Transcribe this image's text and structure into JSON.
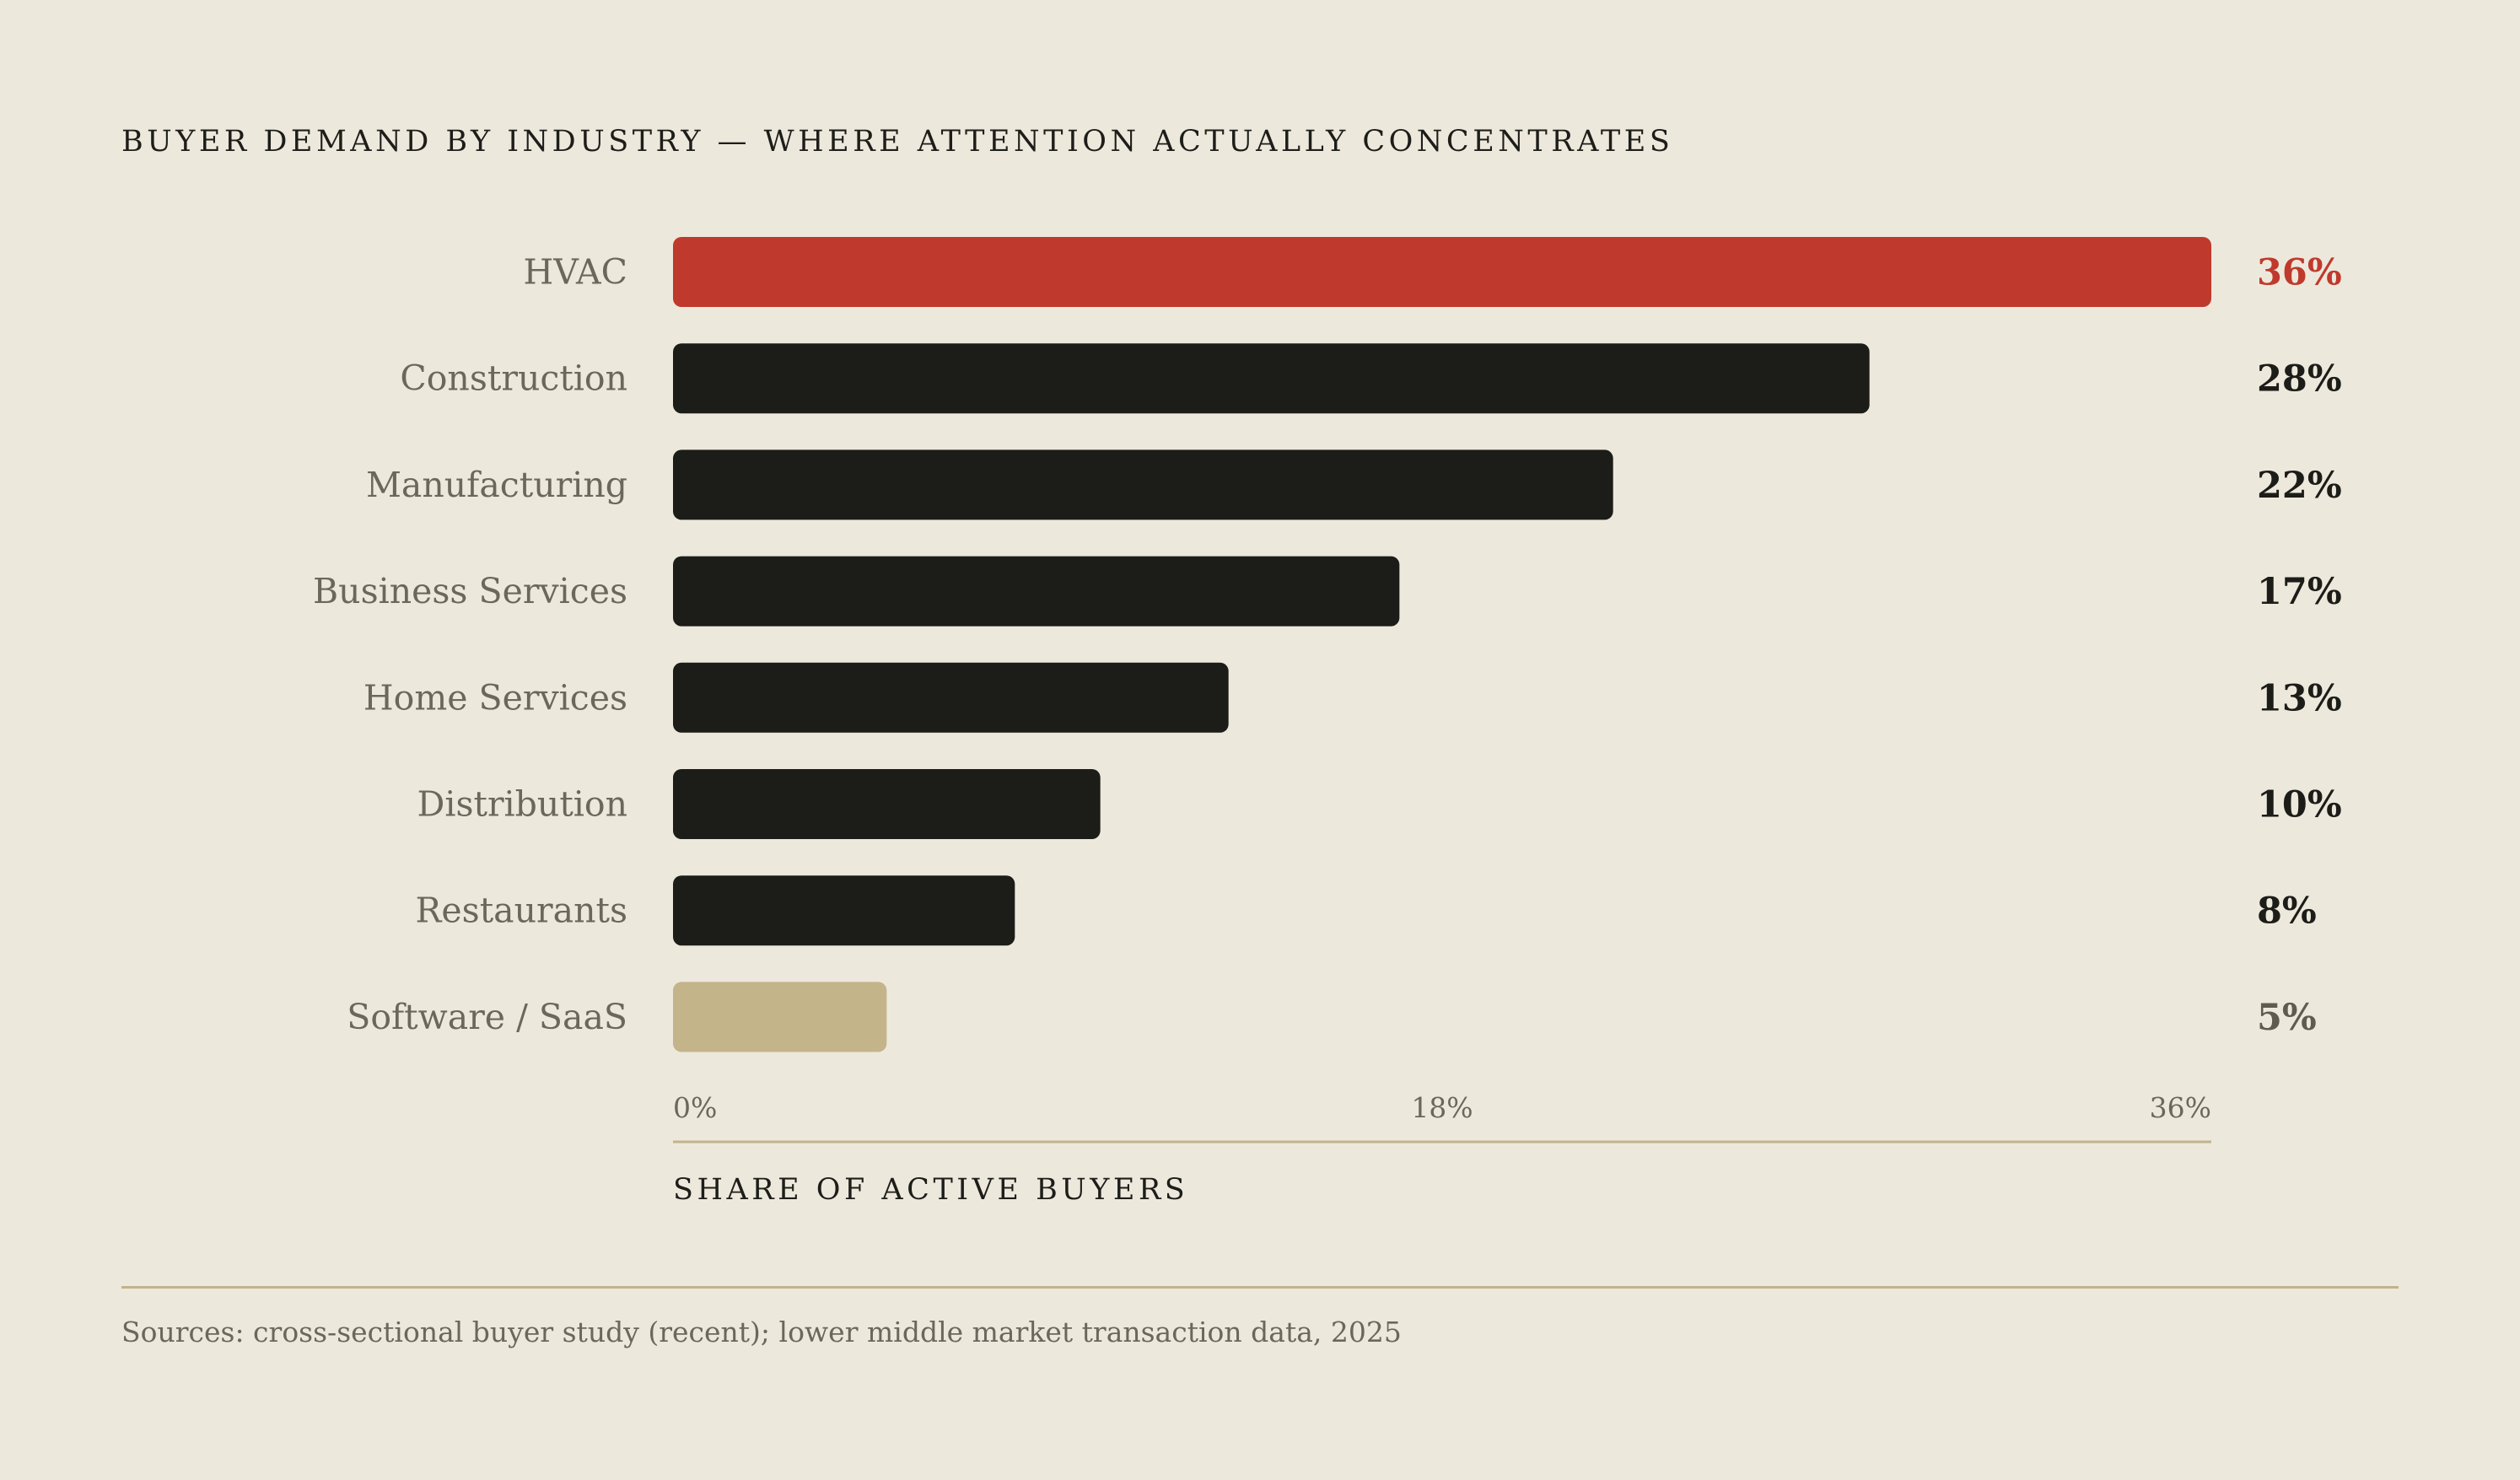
{
  "title": "BUYER DEMAND BY INDUSTRY — WHERE ATTENTION ACTUALLY CONCENTRATES",
  "source": "Sources: cross-sectional buyer study (recent); lower middle market transaction data, 2025",
  "colors": {
    "background": "#ede8dc",
    "highlight": "#c0392d",
    "default_bar": "#1c1c18",
    "muted_bar": "#c4b48a",
    "axis_line": "#c2b38c",
    "label_text": "#6b675c",
    "value_text": "#1c1c18",
    "muted_value_text": "#5f5b50"
  },
  "chart_data": {
    "type": "bar",
    "orientation": "horizontal",
    "categories": [
      "HVAC",
      "Construction",
      "Manufacturing",
      "Business Services",
      "Home Services",
      "Distribution",
      "Restaurants",
      "Software / SaaS"
    ],
    "values": [
      36,
      28,
      22,
      17,
      13,
      10,
      8,
      5
    ],
    "value_labels": [
      "36%",
      "28%",
      "22%",
      "17%",
      "13%",
      "10%",
      "8%",
      "5%"
    ],
    "bar_styles": [
      "highlight",
      "default",
      "default",
      "default",
      "default",
      "default",
      "default",
      "muted"
    ],
    "xlim": [
      0,
      36
    ],
    "ticks": [
      0,
      18,
      36
    ],
    "tick_labels": [
      "0%",
      "18%",
      "36%"
    ],
    "xlabel": "SHARE OF ACTIVE BUYERS",
    "ylabel": "",
    "grid": false,
    "legend": "none"
  }
}
